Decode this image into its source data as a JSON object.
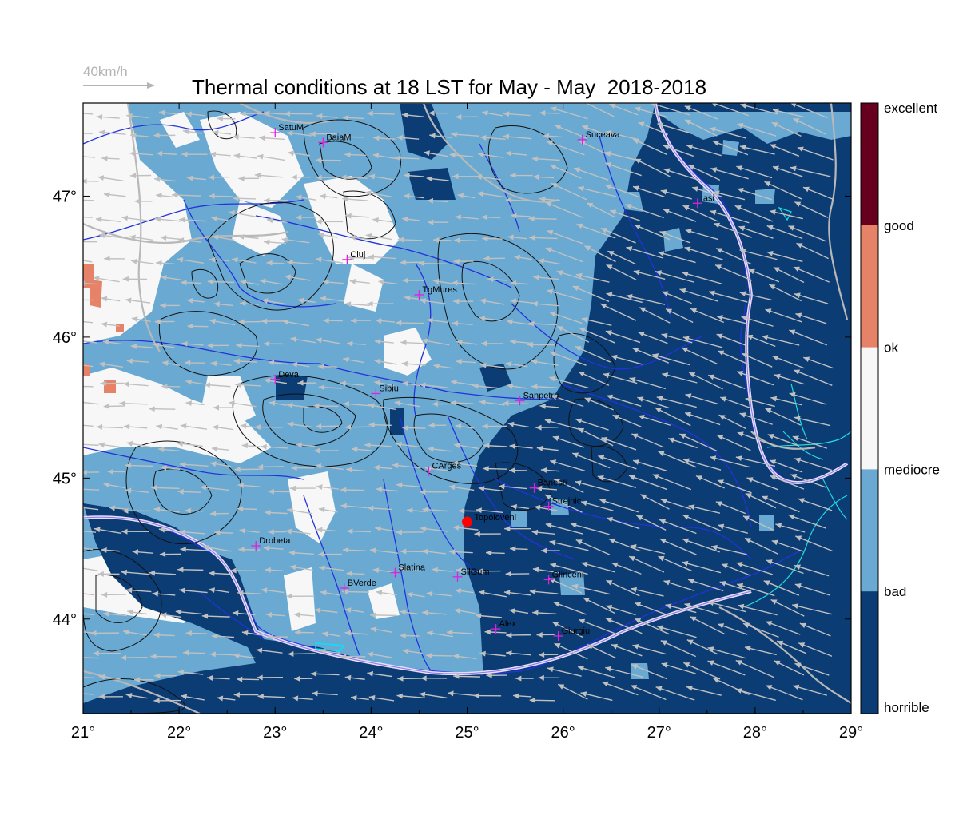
{
  "title": "Thermal conditions at 18 LST for May - May  2018-2018",
  "wind_reference": {
    "label": "40km/h"
  },
  "axes": {
    "lon_ticks": [
      "21°",
      "22°",
      "23°",
      "24°",
      "25°",
      "26°",
      "27°",
      "28°",
      "29°"
    ],
    "lat_ticks": [
      "47°",
      "46°",
      "45°",
      "44°"
    ]
  },
  "legend": {
    "categories": [
      {
        "label": "excellent",
        "color": "#67001f"
      },
      {
        "label": "good",
        "color": "#e58267"
      },
      {
        "label": "ok",
        "color": "#f7f7f7"
      },
      {
        "label": "mediocre",
        "color": "#6aaad2"
      },
      {
        "label": "bad",
        "color": "#0b3c74"
      },
      {
        "label": "horrible",
        "color": "#0b3c74"
      }
    ]
  },
  "cities": [
    {
      "name": "SatuM",
      "lon": 23.0,
      "lat": 47.45
    },
    {
      "name": "BaiaM",
      "lon": 23.5,
      "lat": 47.38
    },
    {
      "name": "Suceava",
      "lon": 26.2,
      "lat": 47.4
    },
    {
      "name": "Iasi",
      "lon": 27.4,
      "lat": 46.95
    },
    {
      "name": "Cluj",
      "lon": 23.75,
      "lat": 46.55
    },
    {
      "name": "TgMures",
      "lon": 24.5,
      "lat": 46.3
    },
    {
      "name": "Deva",
      "lon": 23.0,
      "lat": 45.7
    },
    {
      "name": "Sibiu",
      "lon": 24.05,
      "lat": 45.6
    },
    {
      "name": "Sanpetru",
      "lon": 25.55,
      "lat": 45.55
    },
    {
      "name": "CArges",
      "lon": 24.6,
      "lat": 45.05
    },
    {
      "name": "Banesti",
      "lon": 25.7,
      "lat": 44.93
    },
    {
      "name": "Strejnic",
      "lon": 25.85,
      "lat": 44.8
    },
    {
      "name": "Drobeta",
      "lon": 22.8,
      "lat": 44.52
    },
    {
      "name": "Slatina",
      "lon": 24.25,
      "lat": 44.33
    },
    {
      "name": "SilGum",
      "lon": 24.9,
      "lat": 44.3
    },
    {
      "name": "Glinceni",
      "lon": 25.85,
      "lat": 44.28
    },
    {
      "name": "BVerde",
      "lon": 23.72,
      "lat": 44.22
    },
    {
      "name": "Alex",
      "lon": 25.3,
      "lat": 43.93
    },
    {
      "name": "Giurgiu",
      "lon": 25.95,
      "lat": 43.88
    }
  ],
  "site": {
    "name": "Topoloveni",
    "lon": 25.0,
    "lat": 44.69,
    "color": "#ff0000"
  }
}
